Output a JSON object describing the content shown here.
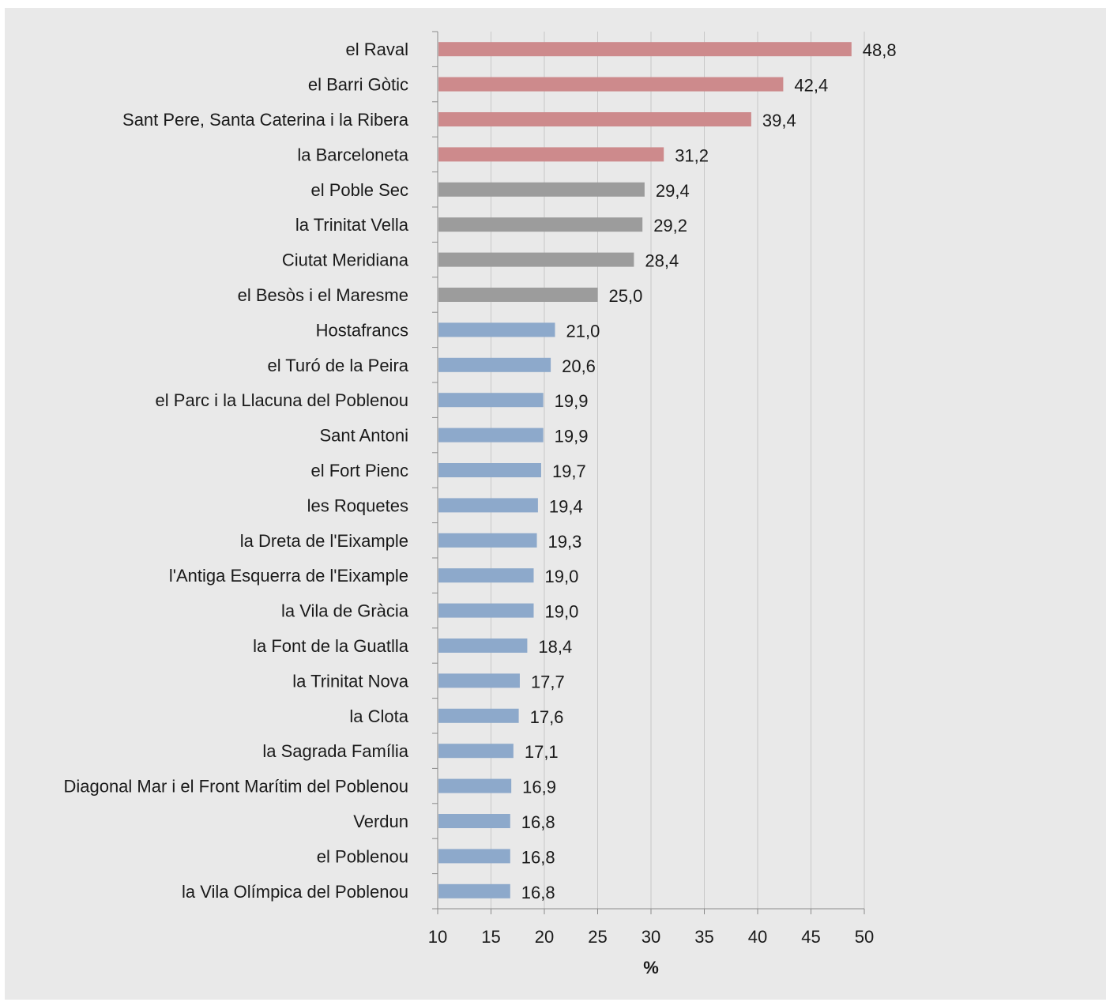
{
  "chart_data": {
    "type": "bar",
    "orientation": "horizontal",
    "categories": [
      "el Raval",
      "el Barri Gòtic",
      "Sant Pere, Santa Caterina i la Ribera",
      "la Barceloneta",
      "el Poble Sec",
      "la Trinitat Vella",
      "Ciutat Meridiana",
      "el Besòs i el Maresme",
      "Hostafrancs",
      "el Turó de la Peira",
      "el Parc i la Llacuna del Poblenou",
      "Sant Antoni",
      "el Fort Pienc",
      "les Roquetes",
      "la Dreta de l'Eixample",
      "l'Antiga Esquerra de l'Eixample",
      "la Vila de Gràcia",
      "la Font de la Guatlla",
      "la Trinitat Nova",
      "la Clota",
      "la Sagrada Família",
      "Diagonal Mar i el Front Marítim del Poblenou",
      "Verdun",
      "el Poblenou",
      "la Vila Olímpica del Poblenou"
    ],
    "values": [
      48.8,
      42.4,
      39.4,
      31.2,
      29.4,
      29.2,
      28.4,
      25.0,
      21.0,
      20.6,
      19.9,
      19.9,
      19.7,
      19.4,
      19.3,
      19.0,
      19.0,
      18.4,
      17.7,
      17.6,
      17.1,
      16.9,
      16.8,
      16.8,
      16.8
    ],
    "value_labels": [
      "48,8",
      "42,4",
      "39,4",
      "31,2",
      "29,4",
      "29,2",
      "28,4",
      "25,0",
      "21,0",
      "20,6",
      "19,9",
      "19,9",
      "19,7",
      "19,4",
      "19,3",
      "19,0",
      "19,0",
      "18,4",
      "17,7",
      "17,6",
      "17,1",
      "16,9",
      "16,8",
      "16,8",
      "16,8"
    ],
    "bar_colors": [
      "#cd8a8c",
      "#cd8a8c",
      "#cd8a8c",
      "#cd8a8c",
      "#9c9c9c",
      "#9c9c9c",
      "#9c9c9c",
      "#9c9c9c",
      "#8da9cb",
      "#8da9cb",
      "#8da9cb",
      "#8da9cb",
      "#8da9cb",
      "#8da9cb",
      "#8da9cb",
      "#8da9cb",
      "#8da9cb",
      "#8da9cb",
      "#8da9cb",
      "#8da9cb",
      "#8da9cb",
      "#8da9cb",
      "#8da9cb",
      "#8da9cb",
      "#8da9cb"
    ],
    "xlim": [
      10,
      50
    ],
    "xticks": [
      10,
      15,
      20,
      25,
      30,
      35,
      40,
      45,
      50
    ],
    "xtick_labels": [
      "10",
      "15",
      "20",
      "25",
      "30",
      "35",
      "40",
      "45",
      "50"
    ],
    "xlabel": "%",
    "ylabel": "",
    "title": "",
    "grid": "vertical",
    "legend": "none"
  },
  "colors": {
    "background": "#e9e9e9",
    "grid": "#c8c8c8",
    "axis": "#8a8a8a"
  }
}
